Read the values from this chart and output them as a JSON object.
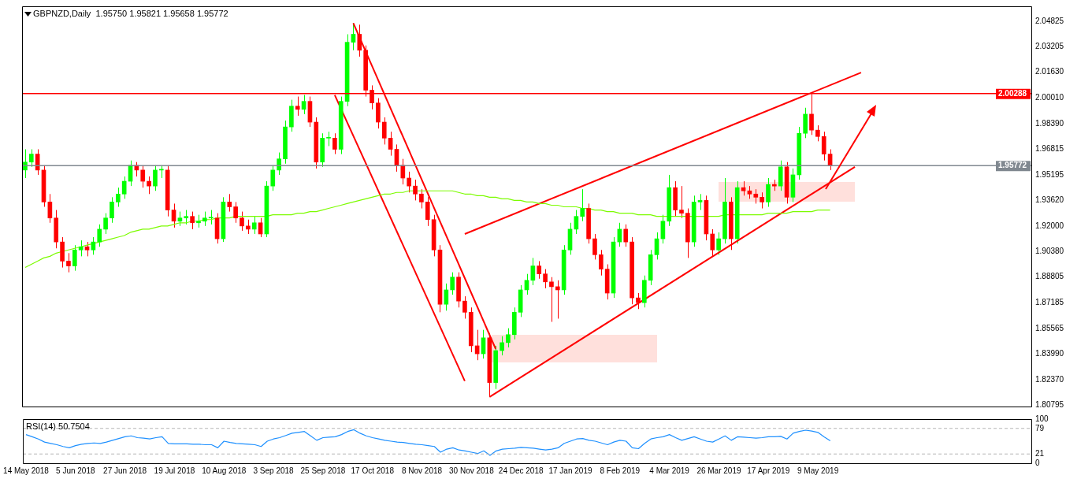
{
  "chart_data": [
    {
      "type": "candlestick",
      "title": "GBPNZD,Daily  1.95750 1.95821 1.95658 1.95772",
      "categories": [
        null,
        null,
        null,
        null,
        null,
        null,
        null,
        null,
        null,
        null,
        null,
        null,
        null,
        null,
        null,
        null,
        null,
        null,
        null,
        null,
        null,
        null,
        null,
        null,
        null,
        null,
        null,
        null,
        null,
        null,
        null,
        null,
        null,
        null,
        null,
        null,
        null,
        null,
        null,
        null,
        null,
        null,
        null,
        null,
        null,
        null,
        null,
        null,
        null,
        null,
        null,
        null,
        null,
        null,
        null,
        null,
        null,
        null,
        null,
        null,
        null,
        null,
        null,
        null,
        null,
        null,
        null,
        null,
        null,
        null,
        null,
        null,
        null,
        null,
        null,
        null,
        null,
        null,
        null,
        null,
        null,
        null,
        null,
        null,
        null,
        null,
        null,
        null,
        null,
        null,
        null,
        null,
        null,
        null,
        null,
        null,
        null,
        null,
        null,
        null,
        null,
        null,
        null,
        null,
        null,
        null,
        null,
        null,
        null,
        null,
        null,
        null,
        null,
        null,
        null,
        null,
        null,
        null,
        null,
        null,
        null,
        null,
        null,
        null,
        null,
        null,
        null,
        null,
        null,
        null,
        null,
        null,
        null,
        null,
        null,
        null,
        null,
        null,
        null,
        null,
        null,
        null,
        null,
        null,
        null,
        null,
        null,
        null,
        null,
        null,
        null,
        null,
        null,
        null,
        null,
        null,
        null,
        null,
        null,
        null,
        null,
        null,
        null
      ],
      "ohlc": [
        [
          1.955,
          1.968,
          1.95,
          1.96
        ],
        [
          1.96,
          1.968,
          1.957,
          1.965
        ],
        [
          1.965,
          1.968,
          1.952,
          1.955
        ],
        [
          1.955,
          1.958,
          1.932,
          1.935
        ],
        [
          1.935,
          1.94,
          1.922,
          1.925
        ],
        [
          1.925,
          1.93,
          1.906,
          1.91
        ],
        [
          1.91,
          1.913,
          1.894,
          1.898
        ],
        [
          1.898,
          1.903,
          1.891,
          1.895
        ],
        [
          1.895,
          1.908,
          1.892,
          1.905
        ],
        [
          1.905,
          1.911,
          1.901,
          1.907
        ],
        [
          1.907,
          1.91,
          1.901,
          1.905
        ],
        [
          1.905,
          1.913,
          1.902,
          1.91
        ],
        [
          1.91,
          1.921,
          1.907,
          1.918
        ],
        [
          1.918,
          1.928,
          1.915,
          1.925
        ],
        [
          1.925,
          1.938,
          1.922,
          1.935
        ],
        [
          1.935,
          1.944,
          1.932,
          1.94
        ],
        [
          1.94,
          1.951,
          1.937,
          1.948
        ],
        [
          1.948,
          1.961,
          1.945,
          1.958
        ],
        [
          1.958,
          1.96,
          1.951,
          1.955
        ],
        [
          1.955,
          1.958,
          1.944,
          1.948
        ],
        [
          1.948,
          1.951,
          1.94,
          1.945
        ],
        [
          1.945,
          1.958,
          1.942,
          1.955
        ],
        [
          1.955,
          1.958,
          1.95,
          1.955
        ],
        [
          1.955,
          1.958,
          1.926,
          1.93
        ],
        [
          1.93,
          1.934,
          1.919,
          1.923
        ],
        [
          1.923,
          1.929,
          1.92,
          1.925
        ],
        [
          1.925,
          1.93,
          1.921,
          1.926
        ],
        [
          1.926,
          1.929,
          1.918,
          1.922
        ],
        [
          1.922,
          1.927,
          1.919,
          1.923
        ],
        [
          1.923,
          1.929,
          1.92,
          1.925
        ],
        [
          1.925,
          1.93,
          1.921,
          1.925
        ],
        [
          1.925,
          1.928,
          1.909,
          1.912
        ],
        [
          1.912,
          1.938,
          1.91,
          1.935
        ],
        [
          1.935,
          1.94,
          1.929,
          1.932
        ],
        [
          1.932,
          1.935,
          1.922,
          1.925
        ],
        [
          1.925,
          1.929,
          1.917,
          1.92
        ],
        [
          1.92,
          1.924,
          1.915,
          1.918
        ],
        [
          1.918,
          1.926,
          1.915,
          1.922
        ],
        [
          1.922,
          1.925,
          1.913,
          1.915
        ],
        [
          1.915,
          1.948,
          1.913,
          1.945
        ],
        [
          1.945,
          1.958,
          1.942,
          1.955
        ],
        [
          1.955,
          1.966,
          1.952,
          1.962
        ],
        [
          1.962,
          1.986,
          1.959,
          1.982
        ],
        [
          1.982,
          1.999,
          1.979,
          1.995
        ],
        [
          1.995,
          2.001,
          1.989,
          1.993
        ],
        [
          1.993,
          2.002,
          1.99,
          1.998
        ],
        [
          1.998,
          2.001,
          1.982,
          1.985
        ],
        [
          1.985,
          1.988,
          1.956,
          1.96
        ],
        [
          1.96,
          1.978,
          1.957,
          1.975
        ],
        [
          1.975,
          1.979,
          1.97,
          1.975
        ],
        [
          1.975,
          1.978,
          1.965,
          1.968
        ],
        [
          1.968,
          2.001,
          1.965,
          1.998
        ],
        [
          1.998,
          2.04,
          1.995,
          2.035
        ],
        [
          2.035,
          2.047,
          2.03,
          2.04
        ],
        [
          2.04,
          2.046,
          2.026,
          2.03
        ],
        [
          2.03,
          2.033,
          2.001,
          2.005
        ],
        [
          2.005,
          2.008,
          1.993,
          1.997
        ],
        [
          1.997,
          2.0,
          1.981,
          1.985
        ],
        [
          1.985,
          1.988,
          1.971,
          1.975
        ],
        [
          1.975,
          1.979,
          1.964,
          1.968
        ],
        [
          1.968,
          1.971,
          1.954,
          1.958
        ],
        [
          1.958,
          1.962,
          1.946,
          1.95
        ],
        [
          1.95,
          1.954,
          1.941,
          1.945
        ],
        [
          1.945,
          1.949,
          1.936,
          1.94
        ],
        [
          1.94,
          1.943,
          1.931,
          1.935
        ],
        [
          1.935,
          1.938,
          1.92,
          1.924
        ],
        [
          1.924,
          1.927,
          1.901,
          1.905
        ],
        [
          1.905,
          1.908,
          1.866,
          1.871
        ],
        [
          1.871,
          1.884,
          1.867,
          1.88
        ],
        [
          1.88,
          1.891,
          1.877,
          1.888
        ],
        [
          1.888,
          1.891,
          1.869,
          1.873
        ],
        [
          1.873,
          1.876,
          1.862,
          1.866
        ],
        [
          1.866,
          1.869,
          1.841,
          1.845
        ],
        [
          1.845,
          1.855,
          1.836,
          1.84
        ],
        [
          1.84,
          1.855,
          1.837,
          1.85
        ],
        [
          1.85,
          1.853,
          1.813,
          1.822
        ],
        [
          1.822,
          1.845,
          1.818,
          1.842
        ],
        [
          1.842,
          1.851,
          1.839,
          1.847
        ],
        [
          1.847,
          1.856,
          1.844,
          1.852
        ],
        [
          1.852,
          1.869,
          1.849,
          1.866
        ],
        [
          1.866,
          1.883,
          1.863,
          1.88
        ],
        [
          1.88,
          1.89,
          1.877,
          1.886
        ],
        [
          1.886,
          1.9,
          1.883,
          1.895
        ],
        [
          1.895,
          1.898,
          1.887,
          1.89
        ],
        [
          1.89,
          1.893,
          1.881,
          1.885
        ],
        [
          1.885,
          1.888,
          1.86,
          1.882
        ],
        [
          1.882,
          1.886,
          1.862,
          1.88
        ],
        [
          1.88,
          1.908,
          1.877,
          1.905
        ],
        [
          1.905,
          1.922,
          1.902,
          1.918
        ],
        [
          1.918,
          1.93,
          1.915,
          1.926
        ],
        [
          1.926,
          1.943,
          1.923,
          1.931
        ],
        [
          1.931,
          1.934,
          1.909,
          1.912
        ],
        [
          1.912,
          1.915,
          1.899,
          1.902
        ],
        [
          1.902,
          1.905,
          1.889,
          1.893
        ],
        [
          1.893,
          1.896,
          1.874,
          1.878
        ],
        [
          1.878,
          1.913,
          1.875,
          1.91
        ],
        [
          1.91,
          1.922,
          1.907,
          1.918
        ],
        [
          1.918,
          1.921,
          1.907,
          1.91
        ],
        [
          1.91,
          1.913,
          1.871,
          1.875
        ],
        [
          1.875,
          1.878,
          1.868,
          1.872
        ],
        [
          1.872,
          1.889,
          1.869,
          1.886
        ],
        [
          1.886,
          1.905,
          1.883,
          1.902
        ],
        [
          1.902,
          1.916,
          1.899,
          1.912
        ],
        [
          1.912,
          1.927,
          1.909,
          1.923
        ],
        [
          1.923,
          1.952,
          1.92,
          1.944
        ],
        [
          1.944,
          1.948,
          1.926,
          1.93
        ],
        [
          1.93,
          1.945,
          1.925,
          1.928
        ],
        [
          1.928,
          1.931,
          1.9,
          1.91
        ],
        [
          1.91,
          1.939,
          1.907,
          1.935
        ],
        [
          1.935,
          1.94,
          1.93,
          1.936
        ],
        [
          1.936,
          1.939,
          1.911,
          1.915
        ],
        [
          1.915,
          1.918,
          1.901,
          1.905
        ],
        [
          1.905,
          1.916,
          1.902,
          1.912
        ],
        [
          1.912,
          1.95,
          1.909,
          1.935
        ],
        [
          1.935,
          1.938,
          1.905,
          1.912
        ],
        [
          1.912,
          1.948,
          1.909,
          1.944
        ],
        [
          1.944,
          1.948,
          1.939,
          1.942
        ],
        [
          1.942,
          1.945,
          1.937,
          1.94
        ],
        [
          1.94,
          1.943,
          1.934,
          1.938
        ],
        [
          1.938,
          1.941,
          1.931,
          1.935
        ],
        [
          1.935,
          1.95,
          1.932,
          1.946
        ],
        [
          1.946,
          1.949,
          1.942,
          1.945
        ],
        [
          1.945,
          1.961,
          1.942,
          1.957
        ],
        [
          1.957,
          1.96,
          1.934,
          1.938
        ],
        [
          1.938,
          1.956,
          1.935,
          1.952
        ],
        [
          1.952,
          1.982,
          1.949,
          1.978
        ],
        [
          1.978,
          1.994,
          1.975,
          1.99
        ],
        [
          1.99,
          2.003,
          1.977,
          1.98
        ],
        [
          1.98,
          1.983,
          1.973,
          1.976
        ],
        [
          1.976,
          1.979,
          1.961,
          1.965
        ],
        [
          1.965,
          1.968,
          1.955,
          1.958
        ],
        null,
        null,
        null,
        null,
        null,
        null,
        null,
        null,
        null,
        null,
        null,
        null,
        null,
        null,
        null,
        null,
        null,
        null,
        null,
        null,
        null,
        null,
        null,
        null,
        null,
        null,
        null,
        null,
        null,
        null,
        null,
        null
      ],
      "colors": [
        "#00ff00",
        "#00ff00",
        "#ff0000",
        "#ff0000",
        "#ff0000",
        "#ff0000",
        "#ff0000",
        "#ff0000",
        "#00ff00",
        "#00ff00",
        "#ff0000",
        "#00ff00",
        "#00ff00",
        "#00ff00",
        "#00ff00",
        "#00ff00",
        "#00ff00",
        "#00ff00",
        "#ff0000",
        "#ff0000",
        "#ff0000",
        "#00ff00",
        "#00ff00",
        "#ff0000",
        "#ff0000",
        "#00ff00",
        "#00ff00",
        "#ff0000",
        "#00ff00",
        "#00ff00",
        "#00ff00",
        "#ff0000",
        "#00ff00",
        "#ff0000",
        "#ff0000",
        "#ff0000",
        "#ff0000",
        "#00ff00",
        "#ff0000",
        "#00ff00",
        "#00ff00",
        "#00ff00",
        "#00ff00",
        "#00ff00",
        "#ff0000",
        "#00ff00",
        "#ff0000",
        "#ff0000",
        "#00ff00",
        "#00ff00",
        "#ff0000",
        "#00ff00",
        "#00ff00",
        "#00ff00",
        "#ff0000",
        "#ff0000",
        "#ff0000",
        "#ff0000",
        "#ff0000",
        "#ff0000",
        "#ff0000",
        "#ff0000",
        "#ff0000",
        "#ff0000",
        "#ff0000",
        "#ff0000",
        "#ff0000",
        "#ff0000",
        "#00ff00",
        "#00ff00",
        "#ff0000",
        "#ff0000",
        "#ff0000",
        "#ff0000",
        "#00ff00",
        "#ff0000",
        "#00ff00",
        "#00ff00",
        "#00ff00",
        "#00ff00",
        "#00ff00",
        "#00ff00",
        "#00ff00",
        "#ff0000",
        "#ff0000",
        "#ff0000",
        "#ff0000",
        "#00ff00",
        "#00ff00",
        "#00ff00",
        "#00ff00",
        "#ff0000",
        "#ff0000",
        "#ff0000",
        "#ff0000",
        "#00ff00",
        "#00ff00",
        "#ff0000",
        "#ff0000",
        "#ff0000",
        "#00ff00",
        "#00ff00",
        "#00ff00",
        "#00ff00",
        "#00ff00",
        "#ff0000",
        "#ff0000",
        "#ff0000",
        "#00ff00",
        "#00ff00",
        "#ff0000",
        "#ff0000",
        "#00ff00",
        "#00ff00",
        "#ff0000",
        "#00ff00",
        "#ff0000",
        "#ff0000",
        "#ff0000",
        "#ff0000",
        "#00ff00",
        "#ff0000",
        "#00ff00",
        "#ff0000",
        "#00ff00",
        "#00ff00",
        "#00ff00",
        "#ff0000",
        "#ff0000",
        "#ff0000",
        "#ff0000",
        null,
        null,
        null,
        null,
        null,
        null,
        null,
        null,
        null,
        null,
        null,
        null,
        null,
        null,
        null,
        null,
        null,
        null,
        null,
        null,
        null,
        null,
        null,
        null,
        null,
        null,
        null,
        null,
        null,
        null,
        null,
        null
      ],
      "series": [
        {
          "type": "line",
          "color": "#7cfc00",
          "values": [
            1.894,
            1.896,
            1.898,
            1.9,
            1.901,
            1.903,
            1.904,
            1.905,
            1.906,
            1.907,
            1.908,
            1.909,
            1.91,
            1.911,
            1.912,
            1.913,
            1.914,
            1.916,
            1.917,
            1.918,
            1.918,
            1.919,
            1.92,
            1.92,
            1.921,
            1.922,
            1.922,
            1.923,
            1.923,
            1.924,
            1.924,
            1.925,
            1.925,
            1.925,
            1.926,
            1.926,
            1.926,
            1.926,
            1.926,
            1.926,
            1.927,
            1.927,
            1.927,
            1.927,
            1.928,
            1.928,
            1.929,
            1.929,
            1.93,
            1.931,
            1.932,
            1.933,
            1.934,
            1.935,
            1.936,
            1.937,
            1.938,
            1.939,
            1.94,
            1.94,
            1.941,
            1.941,
            1.942,
            1.942,
            1.942,
            1.942,
            1.942,
            1.942,
            1.942,
            1.942,
            1.941,
            1.94,
            1.94,
            1.939,
            1.939,
            1.938,
            1.938,
            1.937,
            1.937,
            1.936,
            1.936,
            1.935,
            1.935,
            1.934,
            1.934,
            1.933,
            1.933,
            1.932,
            1.932,
            1.932,
            1.931,
            1.931,
            1.93,
            1.93,
            1.929,
            1.929,
            1.928,
            1.928,
            1.928,
            1.927,
            1.927,
            1.927,
            1.926,
            1.926,
            1.926,
            1.926,
            1.926,
            1.926,
            1.926,
            1.926,
            1.926,
            1.926,
            1.926,
            1.927,
            1.927,
            1.927,
            1.927,
            1.927,
            1.927,
            1.927,
            1.928,
            1.928,
            1.928,
            1.928,
            1.929,
            1.929,
            1.929,
            1.929,
            1.93,
            1.93,
            1.93,
            null,
            null,
            null,
            null,
            null,
            null,
            null,
            null,
            null,
            null,
            null,
            null,
            null,
            null,
            null,
            null,
            null,
            null,
            null,
            null,
            null,
            null,
            null,
            null,
            null,
            null,
            null,
            null,
            null,
            null,
            null,
            null
          ]
        },
        {
          "type": "line",
          "color": "#ff0000",
          "values": [
            null,
            null,
            null,
            null,
            null,
            null,
            null,
            null,
            null,
            null,
            null,
            null,
            null,
            null,
            null,
            null,
            null,
            null,
            null,
            null,
            null,
            null,
            null,
            null,
            null,
            null,
            null,
            null,
            null,
            null,
            null,
            null,
            null,
            null,
            null,
            null,
            null,
            null,
            null,
            null,
            null,
            null,
            null,
            null,
            null,
            null,
            null,
            null,
            null,
            null,
            null,
            null,
            null,
            2.047,
            null,
            null,
            null,
            null,
            null,
            null,
            null,
            null,
            null,
            null,
            null,
            null,
            null,
            null,
            null,
            null,
            null,
            null,
            null,
            null,
            null,
            null,
            1.843,
            null,
            null,
            null,
            null,
            null,
            null,
            null,
            null,
            null,
            null,
            null,
            null,
            null,
            null,
            null,
            null,
            null,
            null,
            null,
            null,
            null,
            null,
            null,
            null,
            null,
            null,
            null,
            null,
            null,
            null,
            null,
            null,
            null,
            null,
            null,
            null,
            null,
            null,
            null,
            null,
            null,
            null,
            null,
            null,
            null,
            null,
            null,
            null,
            null,
            null,
            null,
            null,
            null,
            null,
            null,
            null,
            null,
            null,
            null,
            null,
            null,
            null,
            null,
            null,
            null,
            null,
            null,
            null,
            null,
            null,
            null,
            null,
            null,
            null,
            null,
            null,
            null,
            null,
            null,
            null,
            null,
            null,
            null,
            null,
            null,
            null
          ]
        },
        {
          "type": "line",
          "color": "#ff0000",
          "values": [
            null,
            null,
            null,
            null,
            null,
            null,
            null,
            null,
            null,
            null,
            null,
            null,
            null,
            null,
            null,
            null,
            null,
            null,
            null,
            null,
            null,
            null,
            null,
            null,
            null,
            null,
            null,
            null,
            null,
            null,
            null,
            null,
            null,
            null,
            null,
            null,
            null,
            null,
            null,
            null,
            null,
            null,
            null,
            null,
            null,
            null,
            null,
            null,
            null,
            null,
            2.002,
            null,
            null,
            null,
            null,
            null,
            null,
            null,
            null,
            null,
            null,
            null,
            null,
            null,
            null,
            null,
            null,
            null,
            null,
            null,
            null,
            1.823,
            null,
            null,
            null,
            null,
            null,
            null,
            null,
            null,
            null,
            null,
            null,
            null,
            null,
            null,
            null,
            null,
            null,
            null,
            null,
            null,
            null,
            null,
            null,
            null,
            null,
            null,
            null,
            null,
            null,
            null,
            null,
            null,
            null,
            null,
            null,
            null,
            null,
            null,
            null,
            null,
            null,
            null,
            null,
            null,
            null,
            null,
            null,
            null,
            null,
            null,
            null,
            null,
            null,
            null,
            null,
            null,
            null,
            null,
            null,
            null,
            null,
            null,
            null,
            null,
            null,
            null,
            null,
            null,
            null,
            null,
            null,
            null,
            null,
            null,
            null,
            null,
            null,
            null,
            null,
            null,
            null,
            null,
            null,
            null,
            null,
            null,
            null,
            null,
            null,
            null,
            null
          ]
        },
        {
          "type": "line",
          "color": "#ff0000",
          "values": [
            null,
            null,
            null,
            null,
            null,
            null,
            null,
            null,
            null,
            null,
            null,
            null,
            null,
            null,
            null,
            null,
            null,
            null,
            null,
            null,
            null,
            null,
            null,
            null,
            null,
            null,
            null,
            null,
            null,
            null,
            null,
            null,
            null,
            null,
            null,
            null,
            null,
            null,
            null,
            null,
            null,
            null,
            null,
            null,
            null,
            null,
            null,
            null,
            null,
            null,
            null,
            null,
            null,
            null,
            null,
            null,
            null,
            null,
            null,
            null,
            null,
            null,
            null,
            null,
            null,
            null,
            null,
            null,
            null,
            null,
            null,
            1.915,
            null,
            null,
            null,
            null,
            null,
            null,
            null,
            null,
            null,
            null,
            null,
            null,
            null,
            null,
            null,
            null,
            null,
            null,
            null,
            null,
            null,
            null,
            null,
            null,
            null,
            null,
            null,
            null,
            null,
            null,
            null,
            null,
            null,
            null,
            null,
            null,
            null,
            null,
            null,
            null,
            null,
            null,
            null,
            null,
            null,
            null,
            null,
            null,
            null,
            null,
            null,
            null,
            null,
            null,
            null,
            null,
            null,
            null,
            null,
            null,
            null,
            null,
            null,
            2.016,
            null,
            null,
            null,
            null,
            null,
            null,
            null,
            null,
            null,
            null,
            null,
            null,
            null,
            null,
            null,
            null,
            null,
            null,
            null,
            null,
            null,
            null,
            null,
            null,
            null,
            null,
            null
          ]
        },
        {
          "type": "line",
          "color": "#ff0000",
          "values": [
            null,
            null,
            null,
            null,
            null,
            null,
            null,
            null,
            null,
            null,
            null,
            null,
            null,
            null,
            null,
            null,
            null,
            null,
            null,
            null,
            null,
            null,
            null,
            null,
            null,
            null,
            null,
            null,
            null,
            null,
            null,
            null,
            null,
            null,
            null,
            null,
            null,
            null,
            null,
            null,
            null,
            null,
            null,
            null,
            null,
            null,
            null,
            null,
            null,
            null,
            null,
            null,
            null,
            null,
            null,
            null,
            null,
            null,
            null,
            null,
            null,
            null,
            null,
            null,
            null,
            null,
            null,
            null,
            null,
            null,
            null,
            null,
            null,
            null,
            null,
            1.813,
            null,
            null,
            null,
            null,
            null,
            null,
            null,
            null,
            null,
            null,
            null,
            null,
            null,
            null,
            null,
            null,
            null,
            null,
            null,
            null,
            null,
            null,
            null,
            null,
            null,
            null,
            null,
            null,
            null,
            null,
            null,
            null,
            null,
            null,
            null,
            null,
            null,
            null,
            null,
            null,
            null,
            null,
            null,
            null,
            null,
            null,
            null,
            null,
            null,
            null,
            null,
            null,
            null,
            null,
            null,
            null,
            null,
            null,
            1.957,
            null,
            null,
            null,
            null,
            null,
            null,
            null,
            null,
            null,
            null,
            null,
            null,
            null,
            null,
            null,
            null,
            null,
            null,
            null,
            null,
            null,
            null,
            null,
            null,
            null,
            null,
            null,
            null
          ]
        }
      ],
      "ylim": [
        1.807,
        2.0575
      ],
      "yticks": [
        2.04825,
        2.03205,
        {
          "value": 2.0163,
          "label": "2.01630"
        },
        {
          "value": 2.0001,
          "label": "2.00010"
        },
        {
          "value": 1.9839,
          "label": "1.98390"
        },
        1.96815,
        1.95195,
        {
          "value": 1.9362,
          "label": "1.93620"
        },
        {
          "value": 1.92,
          "label": "1.92000"
        },
        {
          "value": 1.9038,
          "label": "1.90380"
        },
        1.88805,
        1.87185,
        1.85565,
        {
          "value": 1.8399,
          "label": "1.83990"
        },
        {
          "value": 1.8237,
          "label": "1.82370"
        },
        1.80795
      ],
      "ref_lines": [
        {
          "axis": "y",
          "value": 2.00288,
          "label": "2.00288",
          "color": "#ff0000"
        },
        {
          "axis": "y",
          "value": 1.95772,
          "label": "1.95772",
          "color": "#808890"
        }
      ],
      "tick_labels": "y"
    },
    {
      "type": "line",
      "title": "RSI(14) 50.7504",
      "categories": [
        "14 May 2018",
        null,
        null,
        null,
        null,
        null,
        null,
        null,
        "5 Jun 2018",
        null,
        null,
        null,
        null,
        null,
        null,
        null,
        "27 Jun 2018",
        null,
        null,
        null,
        null,
        null,
        null,
        null,
        "19 Jul 2018",
        null,
        null,
        null,
        null,
        null,
        null,
        null,
        "10 Aug 2018",
        null,
        null,
        null,
        null,
        null,
        null,
        null,
        "3 Sep 2018",
        null,
        null,
        null,
        null,
        null,
        null,
        null,
        "25 Sep 2018",
        null,
        null,
        null,
        null,
        null,
        null,
        null,
        "17 Oct 2018",
        null,
        null,
        null,
        null,
        null,
        null,
        null,
        "8 Nov 2018",
        null,
        null,
        null,
        null,
        null,
        null,
        null,
        "30 Nov 2018",
        null,
        null,
        null,
        null,
        null,
        null,
        null,
        "24 Dec 2018",
        null,
        null,
        null,
        null,
        null,
        null,
        null,
        "17 Jan 2019",
        null,
        null,
        null,
        null,
        null,
        null,
        null,
        "8 Feb 2019",
        null,
        null,
        null,
        null,
        null,
        null,
        null,
        "4 Mar 2019",
        null,
        null,
        null,
        null,
        null,
        null,
        null,
        "26 Mar 2019",
        null,
        null,
        null,
        null,
        null,
        null,
        null,
        "17 Apr 2019",
        null,
        null,
        null,
        null,
        null,
        null,
        null,
        "9 May 2019",
        null,
        null,
        null,
        null,
        null,
        null,
        null,
        null,
        null,
        null,
        null,
        null,
        null,
        null,
        null,
        null,
        null,
        null,
        null,
        null,
        null,
        null,
        null,
        null,
        null,
        null,
        null,
        null,
        null,
        null,
        null,
        null,
        null,
        null
      ],
      "series": [
        {
          "color": "#1e90ff",
          "values": [
            65,
            60,
            55,
            48,
            45,
            42,
            38,
            35,
            40,
            43,
            45,
            46,
            45,
            48,
            52,
            56,
            60,
            62,
            58,
            57,
            55,
            58,
            60,
            45,
            44,
            44,
            44,
            43,
            43,
            42,
            42,
            35,
            50,
            47,
            45,
            44,
            43,
            42,
            38,
            50,
            55,
            58,
            63,
            68,
            70,
            72,
            62,
            52,
            58,
            59,
            60,
            65,
            72,
            76,
            68,
            62,
            58,
            55,
            52,
            50,
            48,
            47,
            45,
            43,
            42,
            40,
            38,
            25,
            32,
            35,
            30,
            28,
            25,
            22,
            28,
            18,
            28,
            32,
            33,
            34,
            36,
            35,
            34,
            32,
            30,
            32,
            35,
            45,
            50,
            55,
            56,
            52,
            50,
            46,
            42,
            48,
            52,
            50,
            35,
            33,
            45,
            55,
            58,
            60,
            65,
            58,
            52,
            56,
            60,
            55,
            50,
            48,
            55,
            62,
            52,
            60,
            59,
            58,
            57,
            58,
            60,
            60,
            61,
            55,
            68,
            72,
            75,
            73,
            70,
            60,
            51,
            null,
            null,
            null,
            null,
            null,
            null,
            null,
            null,
            null,
            null,
            null,
            null,
            null,
            null,
            null,
            null,
            null,
            null,
            null,
            null,
            null,
            null,
            null,
            null,
            null,
            null,
            null,
            null,
            null,
            null,
            null,
            null
          ]
        }
      ],
      "ylim": [
        0,
        100
      ],
      "yticks": [
        0,
        21,
        79,
        100
      ],
      "ref_lines": [
        {
          "axis": "y",
          "value": 79,
          "color": "#b4b4b4",
          "line_style": "dashed"
        },
        {
          "axis": "y",
          "value": 21,
          "color": "#b4b4b4",
          "line_style": "dashed"
        }
      ]
    }
  ]
}
